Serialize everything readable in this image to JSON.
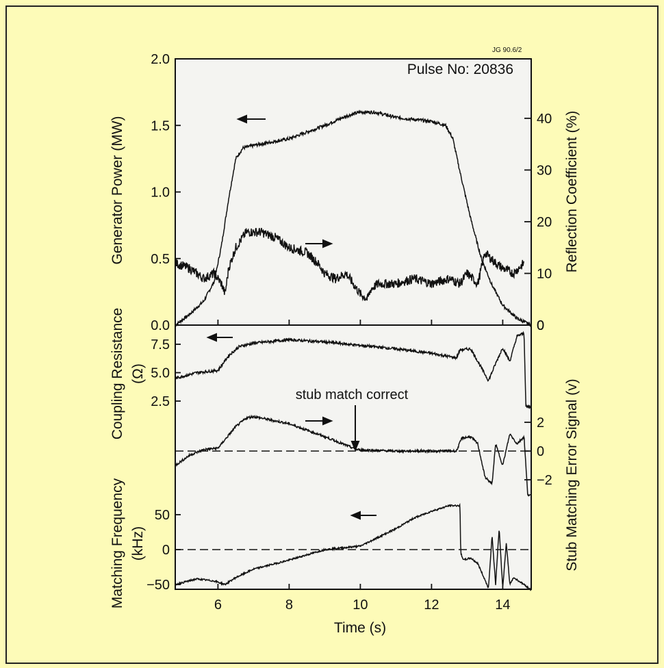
{
  "figure": {
    "figure_code": "JG 90.6/2",
    "pulse_label": "Pulse No: 20836",
    "annotation": "stub match correct",
    "bg_color": "#fdfbb8",
    "plot_bg_color": "#f4f4f1",
    "line_color": "#111111"
  },
  "chart_data": [
    {
      "type": "line",
      "panel": "top",
      "xlabel": "Time (s)",
      "xlim": [
        4.8,
        14.8
      ],
      "x_ticks": [
        6,
        8,
        10,
        12,
        14
      ],
      "ylabel": "Generator Power (MW)",
      "ylim": [
        0,
        2.0
      ],
      "y_ticks": [
        "0.0",
        "0.5",
        "1.0",
        "1.5",
        "2.0"
      ],
      "y2label": "Reflection Coefficient (%)",
      "y2lim": [
        0,
        52
      ],
      "y2_ticks": [
        0,
        10,
        20,
        30,
        40
      ],
      "series": [
        {
          "axis": "left",
          "noise": 0.012,
          "points": [
            [
              4.8,
              0.0
            ],
            [
              5.2,
              0.08
            ],
            [
              5.6,
              0.18
            ],
            [
              5.9,
              0.33
            ],
            [
              6.1,
              0.6
            ],
            [
              6.3,
              0.95
            ],
            [
              6.5,
              1.25
            ],
            [
              6.7,
              1.33
            ],
            [
              7.0,
              1.35
            ],
            [
              8.0,
              1.4
            ],
            [
              9.0,
              1.5
            ],
            [
              9.6,
              1.57
            ],
            [
              10.0,
              1.6
            ],
            [
              10.4,
              1.6
            ],
            [
              11.0,
              1.56
            ],
            [
              12.0,
              1.53
            ],
            [
              12.4,
              1.5
            ],
            [
              12.6,
              1.4
            ],
            [
              12.8,
              1.15
            ],
            [
              13.1,
              0.8
            ],
            [
              13.4,
              0.5
            ],
            [
              13.7,
              0.3
            ],
            [
              14.0,
              0.15
            ],
            [
              14.4,
              0.05
            ],
            [
              14.8,
              0.0
            ]
          ]
        },
        {
          "axis": "right",
          "noise": 0.9,
          "points": [
            [
              4.8,
              12
            ],
            [
              5.2,
              11
            ],
            [
              5.6,
              9
            ],
            [
              5.9,
              10
            ],
            [
              6.1,
              8
            ],
            [
              6.2,
              6
            ],
            [
              6.3,
              11
            ],
            [
              6.5,
              15
            ],
            [
              6.8,
              18
            ],
            [
              7.2,
              18
            ],
            [
              7.6,
              17
            ],
            [
              8.0,
              15
            ],
            [
              8.5,
              14
            ],
            [
              8.8,
              12
            ],
            [
              9.0,
              10
            ],
            [
              9.3,
              9
            ],
            [
              9.6,
              10
            ],
            [
              9.8,
              8
            ],
            [
              10.0,
              6
            ],
            [
              10.2,
              5
            ],
            [
              10.3,
              7
            ],
            [
              10.5,
              8
            ],
            [
              11.0,
              8
            ],
            [
              11.5,
              9
            ],
            [
              12.0,
              8
            ],
            [
              12.5,
              9
            ],
            [
              12.8,
              8
            ],
            [
              13.0,
              10
            ],
            [
              13.3,
              8
            ],
            [
              13.5,
              14
            ],
            [
              13.8,
              12
            ],
            [
              14.0,
              11
            ],
            [
              14.3,
              10
            ],
            [
              14.6,
              12
            ]
          ]
        }
      ]
    },
    {
      "type": "line",
      "panel": "middle",
      "ylabel": "Coupling Resistance (Ω)",
      "ylim": [
        0,
        9.0
      ],
      "y_ticks": [
        "2.5",
        "5.0",
        "7.5"
      ],
      "y2label": "Stub Matching Error Signal (v)",
      "y2lim": [
        -2.6,
        3.6
      ],
      "y2_ticks": [
        "2",
        "0",
        "−2"
      ],
      "annotation_x": 9.9,
      "series": [
        {
          "axis": "left",
          "noise": 0.12,
          "points": [
            [
              4.8,
              4.5
            ],
            [
              5.4,
              5.0
            ],
            [
              6.0,
              5.2
            ],
            [
              6.3,
              6.5
            ],
            [
              6.6,
              7.3
            ],
            [
              7.0,
              7.6
            ],
            [
              8.0,
              7.9
            ],
            [
              9.0,
              7.7
            ],
            [
              10.0,
              7.4
            ],
            [
              11.0,
              7.1
            ],
            [
              12.0,
              6.7
            ],
            [
              12.7,
              6.3
            ],
            [
              12.8,
              7.0
            ],
            [
              13.1,
              7.1
            ],
            [
              13.3,
              6.0
            ],
            [
              13.6,
              4.3
            ],
            [
              13.8,
              5.8
            ],
            [
              14.0,
              7.2
            ],
            [
              14.2,
              6.0
            ],
            [
              14.4,
              8.2
            ],
            [
              14.6,
              8.5
            ],
            [
              14.65,
              2.0
            ],
            [
              14.8,
              2.0
            ]
          ]
        },
        {
          "axis": "right",
          "noise": 0.08,
          "points": [
            [
              4.8,
              -1.0
            ],
            [
              5.2,
              -0.3
            ],
            [
              5.6,
              0.1
            ],
            [
              6.0,
              0.2
            ],
            [
              6.2,
              0.8
            ],
            [
              6.5,
              1.7
            ],
            [
              6.8,
              2.3
            ],
            [
              7.0,
              2.4
            ],
            [
              8.0,
              1.9
            ],
            [
              9.0,
              1.0
            ],
            [
              9.5,
              0.5
            ],
            [
              9.9,
              0.1
            ],
            [
              10.3,
              0.05
            ],
            [
              11.0,
              0.0
            ],
            [
              12.0,
              0.0
            ],
            [
              12.7,
              0.0
            ],
            [
              12.85,
              0.9
            ],
            [
              13.1,
              1.0
            ],
            [
              13.3,
              0.5
            ],
            [
              13.5,
              -1.8
            ],
            [
              13.7,
              -2.3
            ],
            [
              13.8,
              0.5
            ],
            [
              14.0,
              -1.0
            ],
            [
              14.2,
              1.2
            ],
            [
              14.4,
              0.5
            ],
            [
              14.6,
              1.0
            ],
            [
              14.7,
              -3.0
            ],
            [
              14.8,
              -3.1
            ]
          ]
        }
      ]
    },
    {
      "type": "line",
      "panel": "bottom",
      "ylabel": "Matching Frequency (kHz)",
      "ylim": [
        -55,
        80
      ],
      "y_ticks": [
        "−50",
        "0",
        "50"
      ],
      "series": [
        {
          "axis": "left",
          "noise": 1.2,
          "points": [
            [
              4.8,
              -50
            ],
            [
              5.4,
              -42
            ],
            [
              5.9,
              -45
            ],
            [
              6.2,
              -50
            ],
            [
              6.5,
              -40
            ],
            [
              7.0,
              -28
            ],
            [
              8.0,
              -15
            ],
            [
              9.0,
              0
            ],
            [
              10.0,
              5
            ],
            [
              11.0,
              30
            ],
            [
              11.5,
              45
            ],
            [
              12.0,
              55
            ],
            [
              12.5,
              63
            ],
            [
              12.8,
              63
            ],
            [
              12.82,
              -5
            ],
            [
              12.9,
              -15
            ],
            [
              13.1,
              -12
            ],
            [
              13.3,
              -20
            ],
            [
              13.6,
              -55
            ],
            [
              13.7,
              20
            ],
            [
              13.8,
              -50
            ],
            [
              13.9,
              30
            ],
            [
              14.0,
              -55
            ],
            [
              14.1,
              10
            ],
            [
              14.2,
              -50
            ],
            [
              14.3,
              -40
            ],
            [
              14.6,
              -50
            ],
            [
              14.8,
              -58
            ]
          ]
        }
      ]
    }
  ]
}
